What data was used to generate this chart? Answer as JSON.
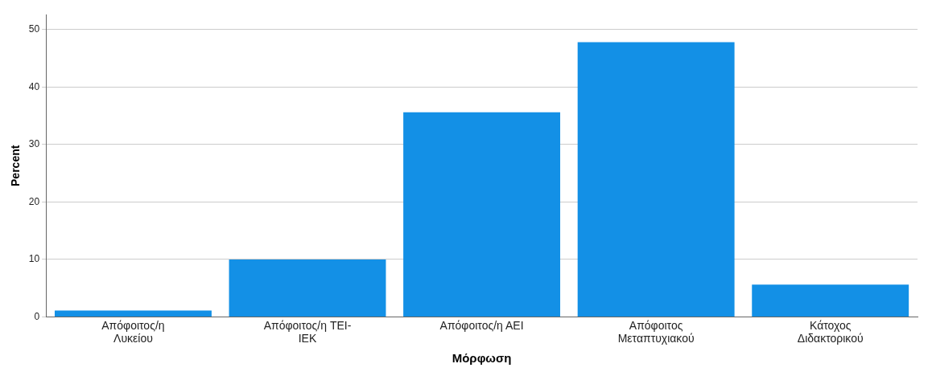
{
  "chart_data": {
    "type": "bar",
    "xlabel": "Μόρφωση",
    "ylabel": "Percent",
    "categories": [
      "Απόφοιτος/η Λυκείου",
      "Απόφοιτος/η TEI-IEK",
      "Απόφοιτος/η ΑΕΙ",
      "Απόφοιτος Μεταπτυχιακού",
      "Κάτοχος Διδακτορικού"
    ],
    "values": [
      1.1,
      10.0,
      35.6,
      47.8,
      5.6
    ],
    "color": "#1390e6",
    "ylim": [
      0,
      52.6
    ],
    "yticks": [
      0,
      10,
      20,
      30,
      40,
      50
    ],
    "grid": "y"
  }
}
